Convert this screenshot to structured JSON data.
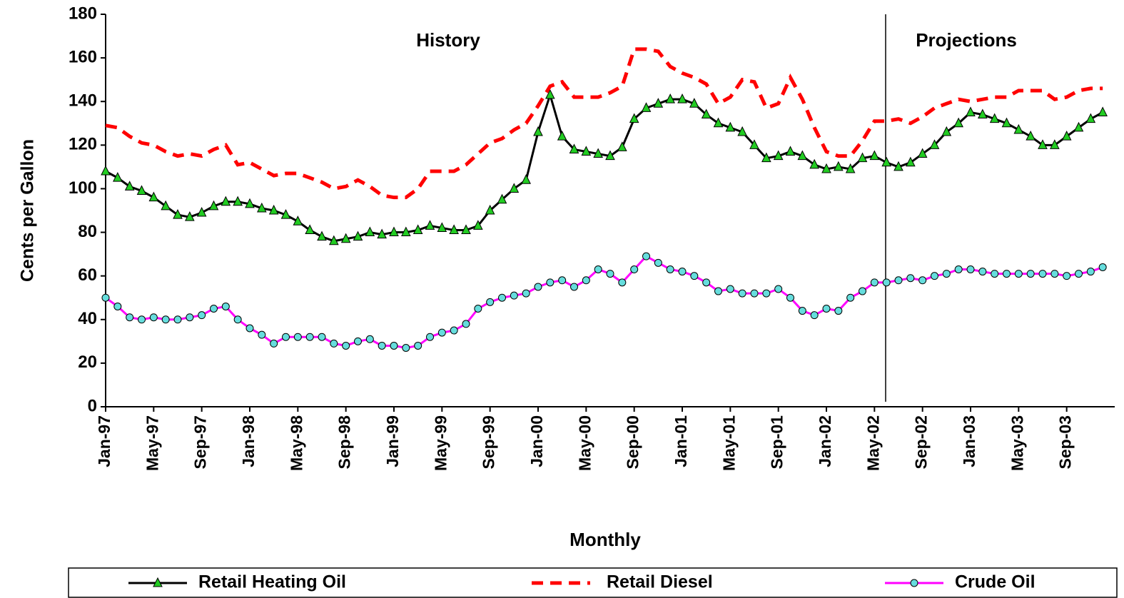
{
  "chart_data": {
    "type": "line",
    "y_label": "Cents per Gallon",
    "x_label": "Monthly",
    "annotations": [
      "History",
      "Projections"
    ],
    "categories": [
      "Jan-97",
      null,
      null,
      null,
      "May-97",
      null,
      null,
      null,
      "Sep-97",
      null,
      null,
      null,
      "Jan-98",
      null,
      null,
      null,
      "May-98",
      null,
      null,
      null,
      "Sep-98",
      null,
      null,
      null,
      "Jan-99",
      null,
      null,
      null,
      "May-99",
      null,
      null,
      null,
      "Sep-99",
      null,
      null,
      null,
      "Jan-00",
      null,
      null,
      null,
      "May-00",
      null,
      null,
      null,
      "Sep-00",
      null,
      null,
      null,
      "Jan-01",
      null,
      null,
      null,
      "May-01",
      null,
      null,
      null,
      "Sep-01",
      null,
      null,
      null,
      "Jan-02",
      null,
      null,
      null,
      "May-02",
      null,
      null,
      null,
      "Sep-02",
      null,
      null,
      null,
      "Jan-03",
      null,
      null,
      null,
      "May-03",
      null,
      null,
      null,
      "Sep-03",
      null,
      null,
      null
    ],
    "series": [
      {
        "name": "Retail Heating Oil",
        "color": "#000000",
        "marker": "triangle",
        "marker_color": "#22cc22",
        "dash": false,
        "values": [
          108,
          105,
          101,
          99,
          96,
          92,
          88,
          87,
          89,
          92,
          94,
          94,
          93,
          91,
          90,
          88,
          85,
          81,
          78,
          76,
          77,
          78,
          80,
          79,
          80,
          80,
          81,
          83,
          82,
          81,
          81,
          83,
          90,
          95,
          100,
          104,
          126,
          143,
          124,
          118,
          117,
          116,
          115,
          119,
          132,
          137,
          139,
          141,
          141,
          139,
          134,
          130,
          128,
          126,
          120,
          114,
          115,
          117,
          115,
          111,
          109,
          110,
          109,
          114,
          115,
          112,
          110,
          112,
          116,
          120,
          126,
          130,
          135,
          134,
          132,
          130,
          127,
          124,
          120,
          120,
          124,
          128,
          132,
          135
        ]
      },
      {
        "name": "Retail Diesel",
        "color": "#ff0000",
        "marker": null,
        "dash": true,
        "values": [
          129,
          128,
          124,
          121,
          120,
          117,
          115,
          116,
          115,
          118,
          120,
          111,
          112,
          109,
          106,
          107,
          107,
          105,
          103,
          100,
          101,
          104,
          101,
          97,
          96,
          96,
          100,
          108,
          108,
          108,
          111,
          116,
          121,
          123,
          127,
          130,
          138,
          147,
          149,
          142,
          142,
          142,
          144,
          147,
          164,
          164,
          163,
          156,
          153,
          151,
          148,
          139,
          142,
          150,
          149,
          137,
          139,
          151,
          141,
          128,
          117,
          115,
          115,
          122,
          131,
          131,
          132,
          130,
          133,
          137,
          139,
          141,
          140,
          141,
          142,
          142,
          145,
          145,
          145,
          141,
          142,
          145,
          146,
          146
        ]
      },
      {
        "name": "Crude Oil",
        "color": "#ff00ff",
        "marker": "circle",
        "marker_color": "#66dddd",
        "dash": false,
        "values": [
          50,
          46,
          41,
          40,
          41,
          40,
          40,
          41,
          42,
          45,
          46,
          40,
          36,
          33,
          29,
          32,
          32,
          32,
          32,
          29,
          28,
          30,
          31,
          28,
          28,
          27,
          28,
          32,
          34,
          35,
          38,
          45,
          48,
          50,
          51,
          52,
          55,
          57,
          58,
          55,
          58,
          63,
          61,
          57,
          63,
          69,
          66,
          63,
          62,
          60,
          57,
          53,
          54,
          52,
          52,
          52,
          54,
          50,
          44,
          42,
          45,
          44,
          50,
          53,
          57,
          57,
          58,
          59,
          58,
          60,
          61,
          63,
          63,
          62,
          61,
          61,
          61,
          61,
          61,
          61,
          60,
          61,
          62,
          64
        ]
      }
    ],
    "ylim": [
      0,
      180
    ],
    "yticks": [
      0,
      20,
      40,
      60,
      80,
      100,
      120,
      140,
      160,
      180
    ],
    "grid": false,
    "legend": "bottom"
  }
}
